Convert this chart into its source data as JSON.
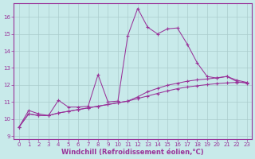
{
  "title": "",
  "xlabel": "Windchill (Refroidissement éolien,°C)",
  "ylabel": "",
  "bg_color": "#c8eaea",
  "line_color": "#993399",
  "grid_color": "#aacccc",
  "xlim": [
    -0.5,
    23.5
  ],
  "ylim": [
    8.8,
    16.8
  ],
  "yticks": [
    9,
    10,
    11,
    12,
    13,
    14,
    15,
    16
  ],
  "xticks": [
    0,
    1,
    2,
    3,
    4,
    5,
    6,
    7,
    8,
    9,
    10,
    11,
    12,
    13,
    14,
    15,
    16,
    17,
    18,
    19,
    20,
    21,
    22,
    23
  ],
  "line1_x": [
    0,
    1,
    2,
    3,
    4,
    5,
    6,
    7,
    8,
    9,
    10,
    11,
    12,
    13,
    14,
    15,
    16,
    17,
    18,
    19,
    20,
    21,
    22,
    23
  ],
  "line1_y": [
    9.5,
    10.5,
    10.3,
    10.2,
    11.1,
    10.7,
    10.7,
    10.75,
    12.6,
    11.0,
    11.05,
    14.9,
    16.5,
    15.4,
    15.0,
    15.3,
    15.35,
    14.4,
    13.3,
    12.5,
    12.4,
    12.5,
    12.2,
    12.1
  ],
  "line2_x": [
    0,
    1,
    2,
    3,
    4,
    5,
    6,
    7,
    8,
    9,
    10,
    11,
    12,
    13,
    14,
    15,
    16,
    17,
    18,
    19,
    20,
    21,
    22,
    23
  ],
  "line2_y": [
    9.5,
    10.3,
    10.2,
    10.2,
    10.35,
    10.45,
    10.55,
    10.65,
    10.75,
    10.85,
    10.95,
    11.05,
    11.2,
    11.35,
    11.5,
    11.65,
    11.78,
    11.88,
    11.95,
    12.02,
    12.08,
    12.12,
    12.15,
    12.15
  ],
  "line3_x": [
    0,
    1,
    2,
    3,
    4,
    5,
    6,
    7,
    8,
    9,
    10,
    11,
    12,
    13,
    14,
    15,
    16,
    17,
    18,
    19,
    20,
    21,
    22,
    23
  ],
  "line3_y": [
    9.5,
    10.3,
    10.2,
    10.2,
    10.35,
    10.45,
    10.55,
    10.65,
    10.75,
    10.85,
    10.95,
    11.05,
    11.3,
    11.6,
    11.8,
    11.98,
    12.1,
    12.22,
    12.3,
    12.35,
    12.42,
    12.5,
    12.28,
    12.15
  ],
  "font_color": "#993399",
  "tick_fontsize": 5.0,
  "xlabel_fontsize": 6.0
}
